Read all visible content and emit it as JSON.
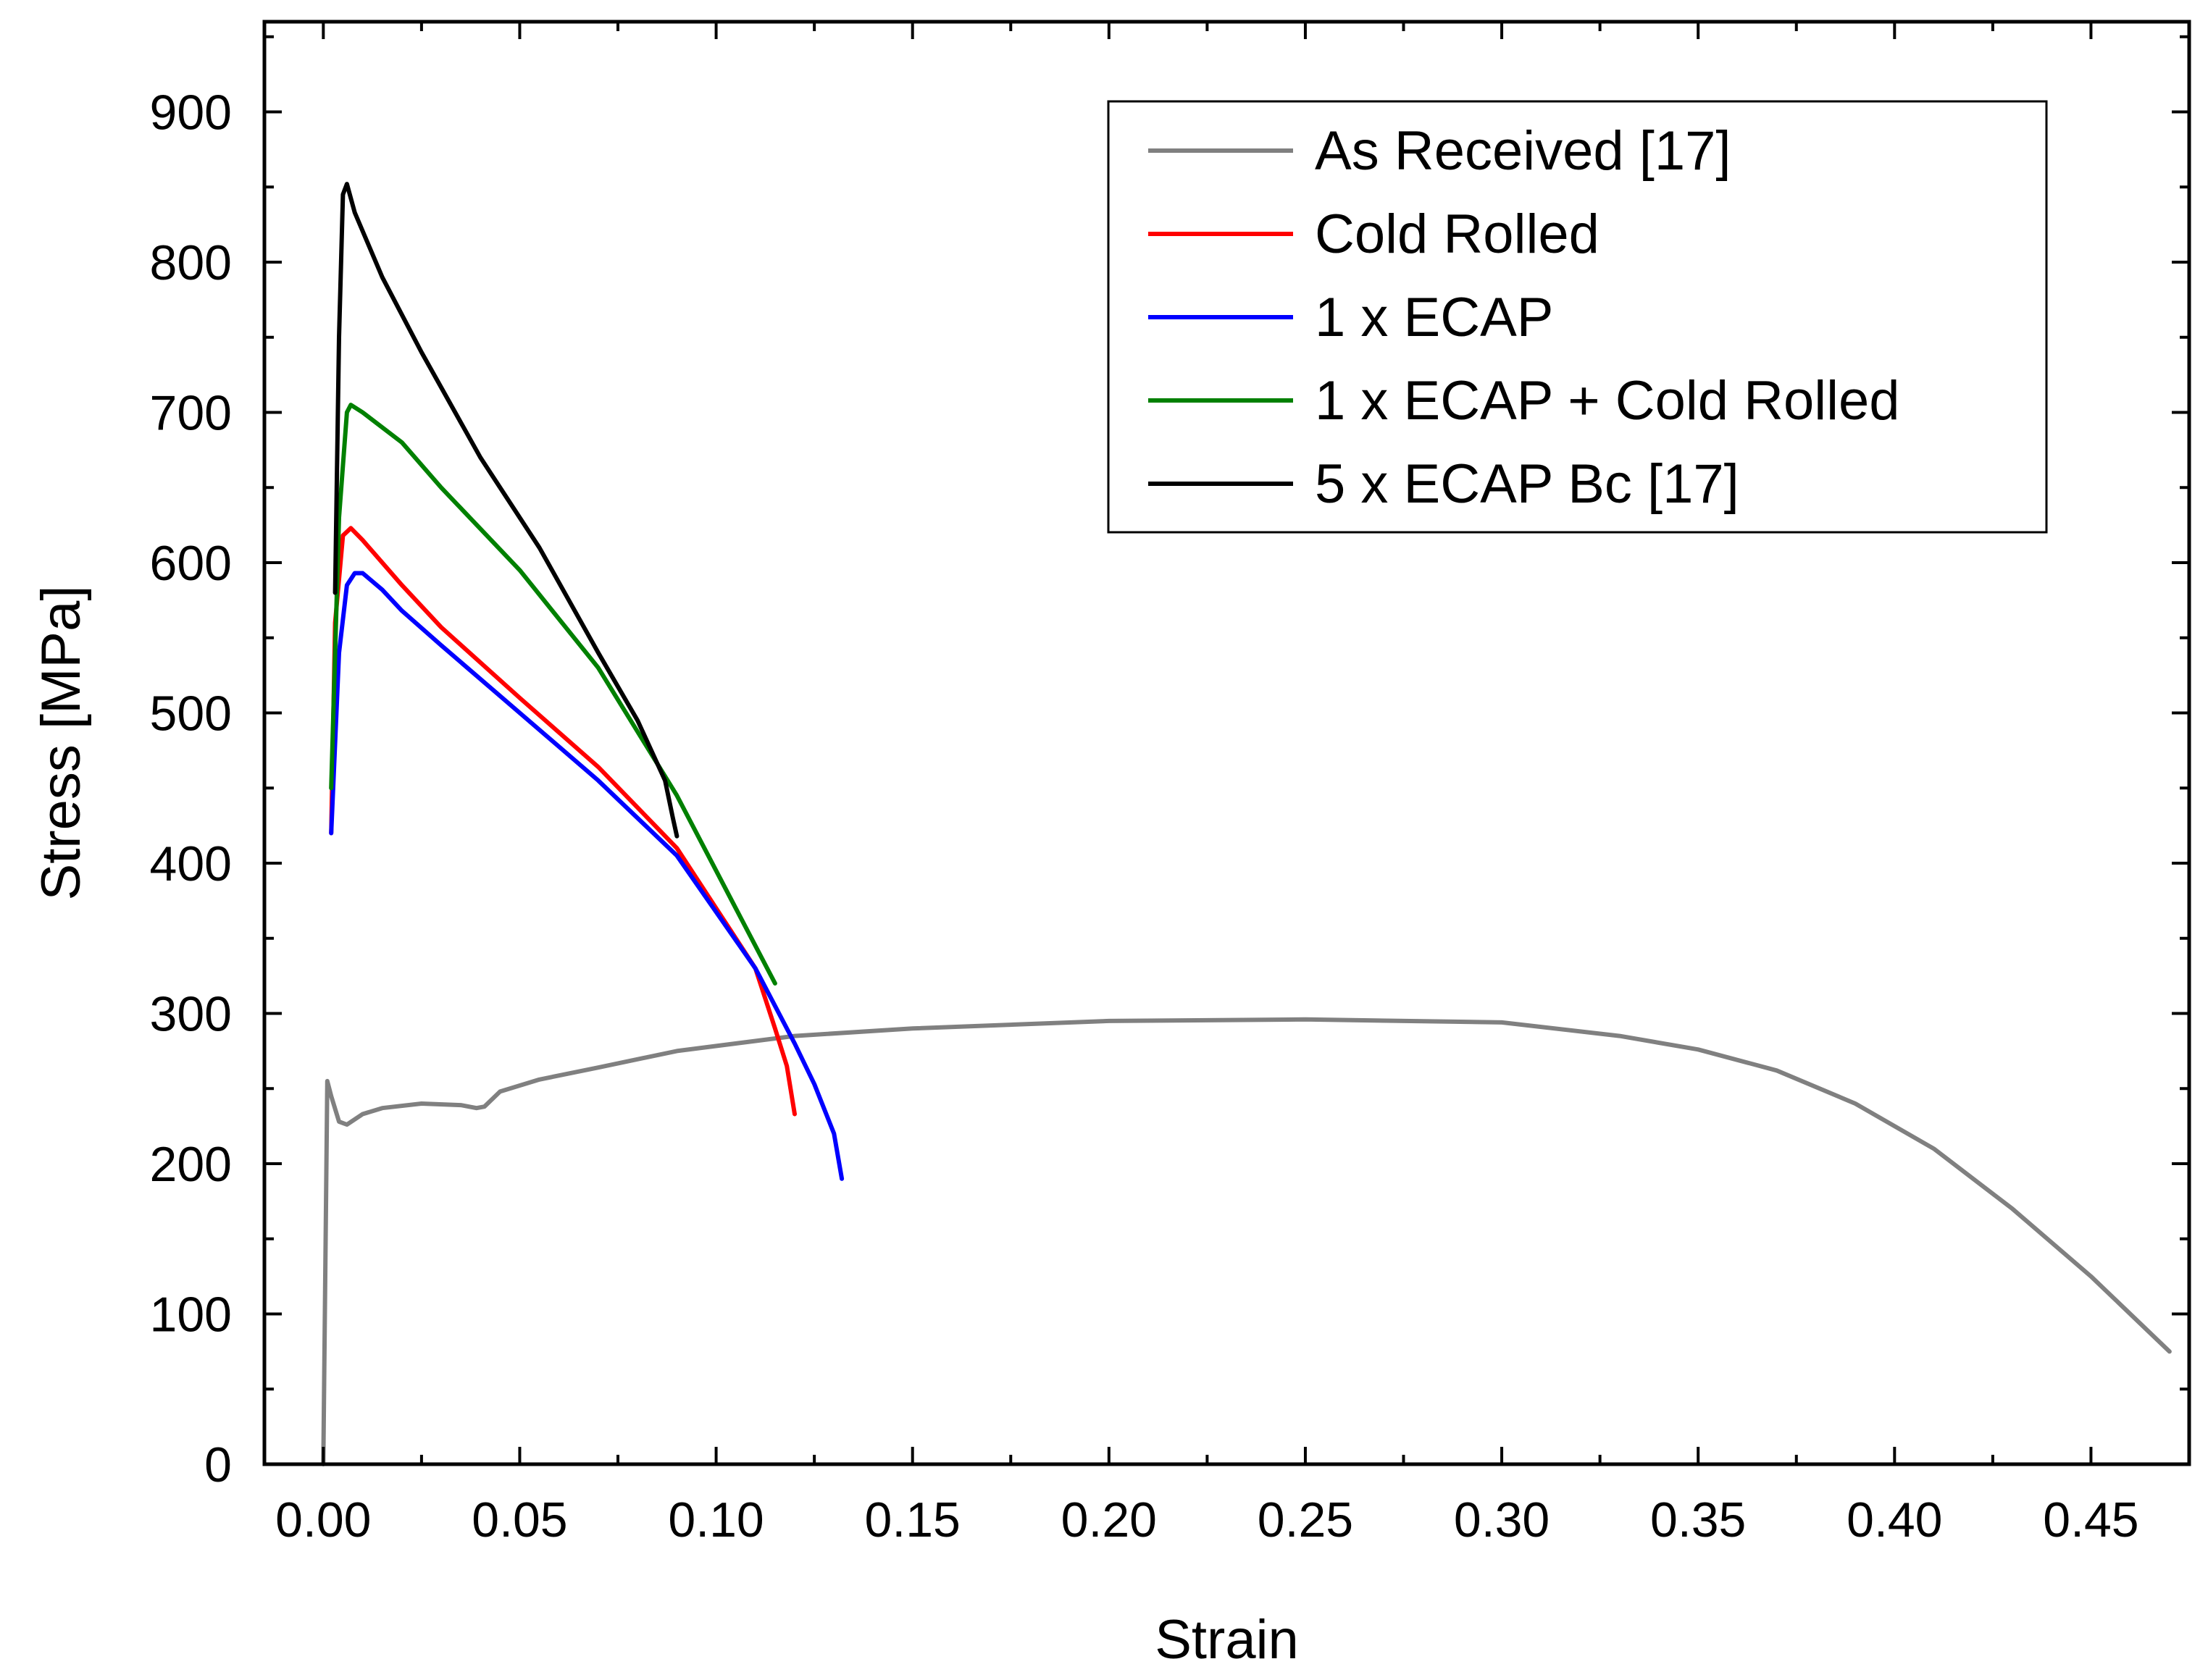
{
  "chart_data": {
    "type": "line",
    "title": "",
    "xlabel": "Strain",
    "ylabel": "Stress [MPa]",
    "xlim": [
      -0.015,
      0.475
    ],
    "ylim": [
      0,
      960
    ],
    "xticks": [
      0.0,
      0.05,
      0.1,
      0.15,
      0.2,
      0.25,
      0.3,
      0.35,
      0.4,
      0.45
    ],
    "xtick_labels": [
      "0.00",
      "0.05",
      "0.10",
      "0.15",
      "0.20",
      "0.25",
      "0.30",
      "0.35",
      "0.40",
      "0.45"
    ],
    "yticks": [
      0,
      100,
      200,
      300,
      400,
      500,
      600,
      700,
      800,
      900
    ],
    "ytick_labels": [
      "0",
      "100",
      "200",
      "300",
      "400",
      "500",
      "600",
      "700",
      "800",
      "900"
    ],
    "grid": false,
    "legend_position": "top-right",
    "series": [
      {
        "name": "As Received [17]",
        "color": "#808080",
        "points": [
          [
            0.0,
            0
          ],
          [
            0.001,
            255
          ],
          [
            0.002,
            245
          ],
          [
            0.004,
            228
          ],
          [
            0.006,
            226
          ],
          [
            0.01,
            233
          ],
          [
            0.015,
            237
          ],
          [
            0.025,
            240
          ],
          [
            0.035,
            239
          ],
          [
            0.039,
            237
          ],
          [
            0.041,
            238
          ],
          [
            0.045,
            248
          ],
          [
            0.055,
            256
          ],
          [
            0.07,
            264
          ],
          [
            0.09,
            275
          ],
          [
            0.12,
            285
          ],
          [
            0.15,
            290
          ],
          [
            0.2,
            295
          ],
          [
            0.25,
            296
          ],
          [
            0.3,
            294
          ],
          [
            0.33,
            285
          ],
          [
            0.35,
            276
          ],
          [
            0.37,
            262
          ],
          [
            0.39,
            240
          ],
          [
            0.41,
            210
          ],
          [
            0.43,
            170
          ],
          [
            0.45,
            125
          ],
          [
            0.47,
            75
          ]
        ]
      },
      {
        "name": "Cold Rolled",
        "color": "#ff0000",
        "points": [
          [
            0.002,
            420
          ],
          [
            0.003,
            560
          ],
          [
            0.005,
            618
          ],
          [
            0.007,
            623
          ],
          [
            0.01,
            615
          ],
          [
            0.02,
            585
          ],
          [
            0.03,
            557
          ],
          [
            0.05,
            510
          ],
          [
            0.07,
            464
          ],
          [
            0.09,
            410
          ],
          [
            0.11,
            330
          ],
          [
            0.115,
            290
          ],
          [
            0.118,
            265
          ],
          [
            0.12,
            233
          ]
        ]
      },
      {
        "name": "1 x ECAP",
        "color": "#0000ff",
        "points": [
          [
            0.002,
            420
          ],
          [
            0.004,
            540
          ],
          [
            0.006,
            585
          ],
          [
            0.008,
            593
          ],
          [
            0.01,
            593
          ],
          [
            0.015,
            582
          ],
          [
            0.02,
            568
          ],
          [
            0.03,
            545
          ],
          [
            0.05,
            500
          ],
          [
            0.07,
            455
          ],
          [
            0.09,
            405
          ],
          [
            0.11,
            330
          ],
          [
            0.12,
            280
          ],
          [
            0.125,
            253
          ],
          [
            0.13,
            220
          ],
          [
            0.132,
            190
          ]
        ]
      },
      {
        "name": "1 x ECAP + Cold Rolled",
        "color": "#008000",
        "points": [
          [
            0.002,
            450
          ],
          [
            0.004,
            630
          ],
          [
            0.006,
            700
          ],
          [
            0.007,
            705
          ],
          [
            0.01,
            700
          ],
          [
            0.02,
            680
          ],
          [
            0.03,
            650
          ],
          [
            0.05,
            595
          ],
          [
            0.07,
            530
          ],
          [
            0.09,
            445
          ],
          [
            0.105,
            370
          ],
          [
            0.115,
            320
          ]
        ]
      },
      {
        "name": "5 x ECAP Bc [17]",
        "color": "#000000",
        "points": [
          [
            0.003,
            580
          ],
          [
            0.004,
            750
          ],
          [
            0.005,
            845
          ],
          [
            0.006,
            852
          ],
          [
            0.008,
            833
          ],
          [
            0.015,
            790
          ],
          [
            0.025,
            740
          ],
          [
            0.04,
            670
          ],
          [
            0.055,
            610
          ],
          [
            0.07,
            540
          ],
          [
            0.08,
            495
          ],
          [
            0.087,
            455
          ],
          [
            0.089,
            430
          ],
          [
            0.09,
            418
          ]
        ]
      }
    ]
  }
}
